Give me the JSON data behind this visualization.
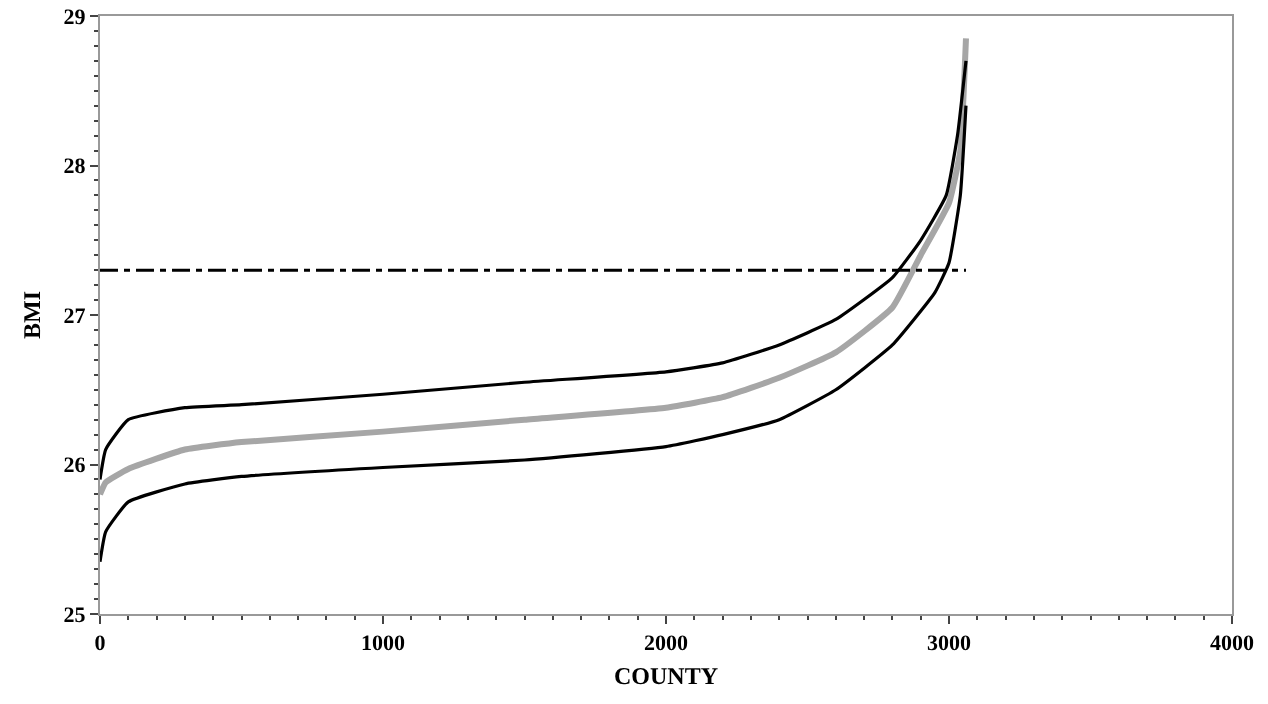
{
  "chart_data": {
    "type": "line",
    "xlabel": "COUNTY",
    "ylabel": "BMI",
    "xlim": [
      0,
      4000
    ],
    "xticks": [
      0,
      1000,
      2000,
      3000,
      4000
    ],
    "ylim": [
      25,
      29
    ],
    "yticks": [
      25,
      26,
      27,
      28,
      29
    ],
    "grid": false,
    "marker": "none",
    "series": [
      {
        "color": "#a6a6a6",
        "x": [
          0,
          20,
          100,
          300,
          500,
          1000,
          1500,
          2000,
          2200,
          2400,
          2600,
          2800,
          2900,
          3000,
          3040,
          3060
        ],
        "values": [
          25.8,
          25.88,
          25.97,
          26.1,
          26.15,
          26.22,
          26.3,
          26.38,
          26.45,
          26.58,
          26.75,
          27.05,
          27.4,
          27.75,
          28.1,
          28.85
        ]
      },
      {
        "color": "#000000",
        "x": [
          0,
          20,
          100,
          300,
          500,
          1000,
          1500,
          2000,
          2200,
          2400,
          2600,
          2800,
          2900,
          2990,
          3030,
          3060
        ],
        "values": [
          25.9,
          26.1,
          26.3,
          26.38,
          26.4,
          26.47,
          26.55,
          26.62,
          26.68,
          26.8,
          26.97,
          27.25,
          27.5,
          27.8,
          28.2,
          28.7
        ]
      },
      {
        "color": "#000000",
        "x": [
          0,
          20,
          100,
          300,
          500,
          1000,
          1500,
          2000,
          2200,
          2400,
          2600,
          2800,
          2950,
          3000,
          3040,
          3060
        ],
        "values": [
          25.35,
          25.55,
          25.75,
          25.87,
          25.92,
          25.98,
          26.03,
          26.12,
          26.2,
          26.3,
          26.5,
          26.8,
          27.15,
          27.35,
          27.8,
          28.4
        ]
      }
    ],
    "ref_lines": [
      {
        "axis": "y",
        "value": 27.3,
        "color": "#000000",
        "line_style": "dashed"
      }
    ]
  }
}
